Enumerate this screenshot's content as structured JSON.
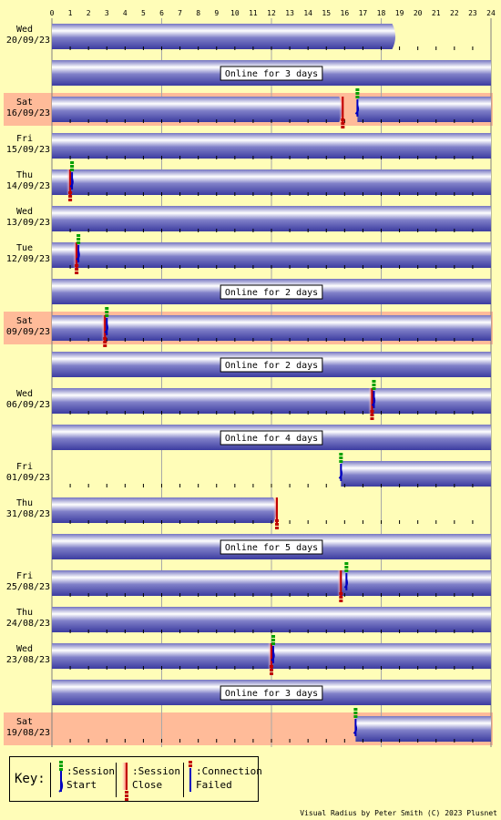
{
  "chart_data": {
    "type": "timeline",
    "x_ticks": [
      "0",
      "1",
      "2",
      "3",
      "4",
      "5",
      "6",
      "7",
      "8",
      "9",
      "10",
      "11",
      "12",
      "13",
      "14",
      "15",
      "16",
      "17",
      "18",
      "19",
      "20",
      "21",
      "22",
      "23",
      "24"
    ],
    "xlim": [
      0,
      24
    ],
    "grid": true,
    "colors": {
      "background": "#fffdb8",
      "highlight_row": "#ffbb99",
      "bar_light": "#ffffff",
      "bar_dark": "#4444a8",
      "grid": "#a8a8a8"
    },
    "rows": [
      {
        "kind": "day",
        "day": "Wed",
        "date": "20/09/23",
        "bars": [
          [
            0,
            18.8
          ]
        ],
        "events": []
      },
      {
        "kind": "online",
        "label": "Online for 3 days"
      },
      {
        "kind": "day",
        "day": "Sat",
        "date": "16/09/23",
        "highlight": true,
        "bars": [
          [
            0,
            15.9
          ],
          [
            16.7,
            24
          ]
        ],
        "events": [
          {
            "type": "close",
            "t": 15.9
          },
          {
            "type": "start",
            "t": 16.7
          }
        ]
      },
      {
        "kind": "day",
        "day": "Fri",
        "date": "15/09/23",
        "bars": [
          [
            0,
            24
          ]
        ],
        "events": []
      },
      {
        "kind": "day",
        "day": "Thu",
        "date": "14/09/23",
        "bars": [
          [
            0,
            24
          ]
        ],
        "events": [
          {
            "type": "close",
            "t": 1.0
          },
          {
            "type": "start",
            "t": 1.1
          }
        ]
      },
      {
        "kind": "day",
        "day": "Wed",
        "date": "13/09/23",
        "bars": [
          [
            0,
            24
          ]
        ],
        "events": []
      },
      {
        "kind": "day",
        "day": "Tue",
        "date": "12/09/23",
        "bars": [
          [
            0,
            24
          ]
        ],
        "events": [
          {
            "type": "close",
            "t": 1.35
          },
          {
            "type": "start",
            "t": 1.45
          }
        ]
      },
      {
        "kind": "online",
        "label": "Online for 2 days"
      },
      {
        "kind": "day",
        "day": "Sat",
        "date": "09/09/23",
        "highlight": true,
        "bars": [
          [
            0,
            24
          ]
        ],
        "events": [
          {
            "type": "close",
            "t": 2.9
          },
          {
            "type": "start",
            "t": 3.0
          }
        ]
      },
      {
        "kind": "online",
        "label": "Online for 2 days"
      },
      {
        "kind": "day",
        "day": "Wed",
        "date": "06/09/23",
        "bars": [
          [
            0,
            24
          ]
        ],
        "events": [
          {
            "type": "close",
            "t": 17.5
          },
          {
            "type": "start",
            "t": 17.6
          }
        ]
      },
      {
        "kind": "online",
        "label": "Online for 4 days"
      },
      {
        "kind": "day",
        "day": "Fri",
        "date": "01/09/23",
        "bars": [
          [
            15.8,
            24
          ]
        ],
        "events": [
          {
            "type": "start",
            "t": 15.8
          }
        ]
      },
      {
        "kind": "day",
        "day": "Thu",
        "date": "31/08/23",
        "bars": [
          [
            0,
            12.3
          ]
        ],
        "events": [
          {
            "type": "close",
            "t": 12.3
          }
        ]
      },
      {
        "kind": "online",
        "label": "Online for 5 days"
      },
      {
        "kind": "day",
        "day": "Fri",
        "date": "25/08/23",
        "bars": [
          [
            0,
            24
          ]
        ],
        "events": [
          {
            "type": "close",
            "t": 15.8
          },
          {
            "type": "start",
            "t": 16.1
          }
        ]
      },
      {
        "kind": "day",
        "day": "Thu",
        "date": "24/08/23",
        "bars": [
          [
            0,
            24
          ]
        ],
        "events": []
      },
      {
        "kind": "day",
        "day": "Wed",
        "date": "23/08/23",
        "bars": [
          [
            0,
            24
          ]
        ],
        "events": [
          {
            "type": "close",
            "t": 12.0
          },
          {
            "type": "start",
            "t": 12.1
          }
        ]
      },
      {
        "kind": "online",
        "label": "Online for 3 days"
      },
      {
        "kind": "day",
        "day": "Sat",
        "date": "19/08/23",
        "highlight": true,
        "bars": [
          [
            16.6,
            24
          ]
        ],
        "events": [
          {
            "type": "start",
            "t": 16.6
          }
        ]
      }
    ]
  },
  "key": {
    "title": "Key:",
    "session_start": ":Session\nStart",
    "session_close": ":Session\nClose",
    "connection_failed": ":Connection\nFailed"
  },
  "footer": "Visual Radius by Peter Smith (C) 2023 Plusnet"
}
